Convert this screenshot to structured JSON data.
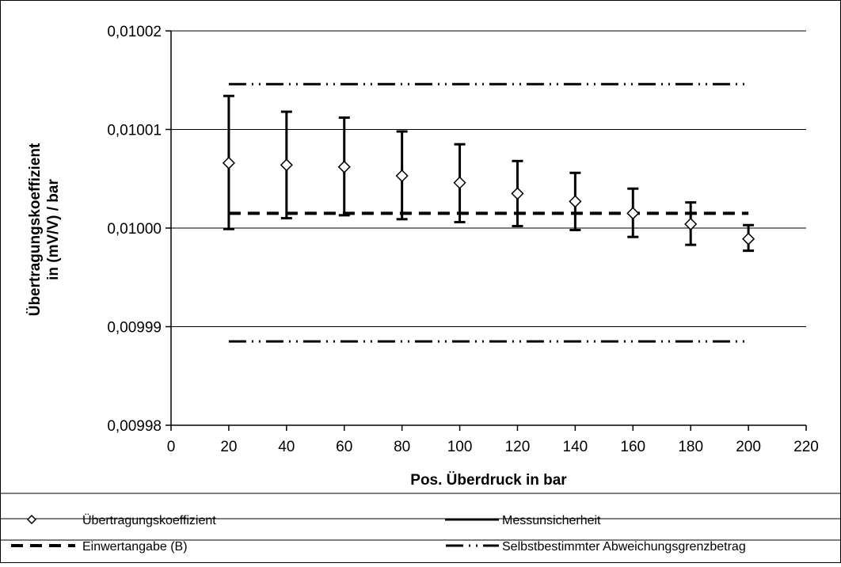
{
  "chart_data": {
    "type": "scatter",
    "xlabel": "Pos. Überdruck in bar",
    "ylabel_lines": [
      "Übertragungskoeffizient",
      "in (mV/V) / bar"
    ],
    "xlim": [
      0,
      220
    ],
    "ylim": [
      0.00998,
      0.01002
    ],
    "x_ticks": [
      0,
      20,
      40,
      60,
      80,
      100,
      120,
      140,
      160,
      180,
      200,
      220
    ],
    "x_tick_labels": [
      "0",
      "20",
      "40",
      "60",
      "80",
      "100",
      "120",
      "140",
      "160",
      "180",
      "200",
      "220"
    ],
    "y_ticks": [
      0.00998,
      0.00999,
      0.01,
      0.01001,
      0.01002
    ],
    "y_tick_labels": [
      "0,00998",
      "0,00999",
      "0,01000",
      "0,01001",
      "0,01002"
    ],
    "grid": "horizontal",
    "legend_position": "bottom",
    "series": [
      {
        "name": "Übertragungskoeffizient",
        "marker": "diamond",
        "x": [
          20,
          40,
          60,
          80,
          100,
          120,
          140,
          160,
          180,
          200
        ],
        "y": [
          0.0100066,
          0.0100064,
          0.0100062,
          0.0100053,
          0.0100046,
          0.0100035,
          0.0100027,
          0.0100015,
          0.0100004,
          0.0099989
        ]
      },
      {
        "name": "Messunsicherheit",
        "type": "errorbars",
        "x": [
          20,
          40,
          60,
          80,
          100,
          120,
          140,
          160,
          180,
          200
        ],
        "low": [
          0.0099999,
          0.010001,
          0.0100013,
          0.0100009,
          0.0100006,
          0.0100002,
          0.0099998,
          0.0099991,
          0.0099983,
          0.0099977
        ],
        "high": [
          0.0100134,
          0.0100118,
          0.0100112,
          0.0100098,
          0.0100085,
          0.0100068,
          0.0100056,
          0.010004,
          0.0100026,
          0.0100003
        ]
      },
      {
        "name": "Einwertangabe (B)",
        "type": "hline",
        "style": "dashed",
        "x_range": [
          20,
          200
        ],
        "y": 0.0100015
      },
      {
        "name": "Selbstbestimmter Abweichungsgrenzbetrag",
        "type": "hline",
        "style": "dash-dot-dot",
        "x_range": [
          20,
          200
        ],
        "y_values": [
          0.0100146,
          0.0099885
        ]
      }
    ]
  },
  "legend": [
    {
      "symbol": "diamond",
      "label": "Übertragungskoeffizient"
    },
    {
      "symbol": "solid",
      "label": "Messunsicherheit"
    },
    {
      "symbol": "dashed",
      "label": "Einwertangabe (B)"
    },
    {
      "symbol": "dash-dot-dot",
      "label": "Selbstbestimmter Abweichungsgrenzbetrag"
    }
  ]
}
